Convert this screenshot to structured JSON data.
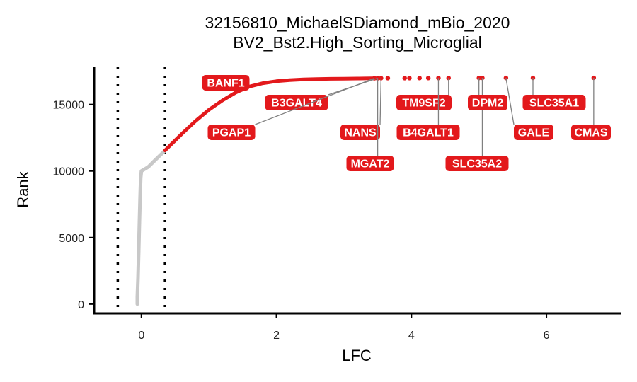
{
  "chart_data": {
    "type": "scatter",
    "title": "32156810_MichaelSDiamond_mBio_2020",
    "subtitle": "BV2_Bst2.High_Sorting_Microglial",
    "xlabel": "LFC",
    "ylabel": "Rank",
    "xlim": [
      -0.7,
      7.1
    ],
    "ylim": [
      -700,
      17800
    ],
    "x_ticks": [
      0,
      2,
      4,
      6
    ],
    "y_ticks": [
      0,
      5000,
      10000,
      15000
    ],
    "threshold_lines": [
      -0.35,
      0.35
    ],
    "grid": false,
    "legend": "none",
    "colors": {
      "background_genes": "#c8c8c8",
      "hit_genes": "#e3191c",
      "label_fill": "#e3191c",
      "label_text": "#ffffff",
      "leader_line": "#808080",
      "threshold": "#000000"
    },
    "series": [
      {
        "points": [
          [
            -0.06,
            0
          ],
          [
            -0.06,
            500
          ],
          [
            -0.05,
            2000
          ],
          [
            -0.04,
            4000
          ],
          [
            -0.03,
            6000
          ],
          [
            -0.02,
            8000
          ],
          [
            -0.01,
            9500
          ],
          [
            0.0,
            10000
          ],
          [
            0.1,
            10300
          ],
          [
            0.2,
            10800
          ],
          [
            0.3,
            11300
          ],
          [
            0.35,
            11550
          ]
        ]
      },
      {
        "points": [
          [
            0.35,
            11550
          ],
          [
            0.45,
            12050
          ],
          [
            0.6,
            12800
          ],
          [
            0.8,
            13750
          ],
          [
            1.0,
            14600
          ],
          [
            1.2,
            15300
          ],
          [
            1.4,
            15900
          ],
          [
            1.6,
            16350
          ],
          [
            1.8,
            16600
          ],
          [
            2.0,
            16750
          ],
          [
            2.2,
            16830
          ],
          [
            2.4,
            16880
          ],
          [
            2.6,
            16910
          ],
          [
            2.8,
            16930
          ],
          [
            3.0,
            16940
          ],
          [
            3.2,
            16950
          ],
          [
            3.3,
            16955
          ],
          [
            3.4,
            16960
          ],
          [
            3.5,
            16965
          ]
        ]
      },
      {
        "points": [
          [
            3.45,
            16970
          ],
          [
            3.5,
            16972
          ],
          [
            3.55,
            16975
          ],
          [
            3.65,
            16977
          ],
          [
            3.9,
            16980
          ],
          [
            3.97,
            16982
          ],
          [
            4.12,
            16984
          ],
          [
            4.25,
            16986
          ],
          [
            4.4,
            16988
          ],
          [
            4.55,
            16990
          ],
          [
            5.0,
            16992
          ],
          [
            5.05,
            16994
          ],
          [
            5.4,
            16996
          ],
          [
            5.8,
            16998
          ],
          [
            6.7,
            17000
          ]
        ]
      }
    ],
    "labeled_genes": [
      {
        "gene": "BANF1",
        "x": 1.5,
        "y": 16920
      },
      {
        "gene": "B3GALT4",
        "x": 3.5,
        "y": 16975
      },
      {
        "gene": "PGAP1",
        "x": 3.45,
        "y": 16970
      },
      {
        "gene": "NANS",
        "x": 3.55,
        "y": 16973
      },
      {
        "gene": "MGAT2",
        "x": 3.5,
        "y": 16972
      },
      {
        "gene": "TM9SF2",
        "x": 4.55,
        "y": 16990
      },
      {
        "gene": "B4GALT1",
        "x": 4.4,
        "y": 16988
      },
      {
        "gene": "SLC35A2",
        "x": 5.05,
        "y": 16994
      },
      {
        "gene": "DPM2",
        "x": 5.0,
        "y": 16992
      },
      {
        "gene": "GALE",
        "x": 5.4,
        "y": 16996
      },
      {
        "gene": "SLC35A1",
        "x": 5.8,
        "y": 16998
      },
      {
        "gene": "CMAS",
        "x": 6.7,
        "y": 17000
      }
    ]
  }
}
